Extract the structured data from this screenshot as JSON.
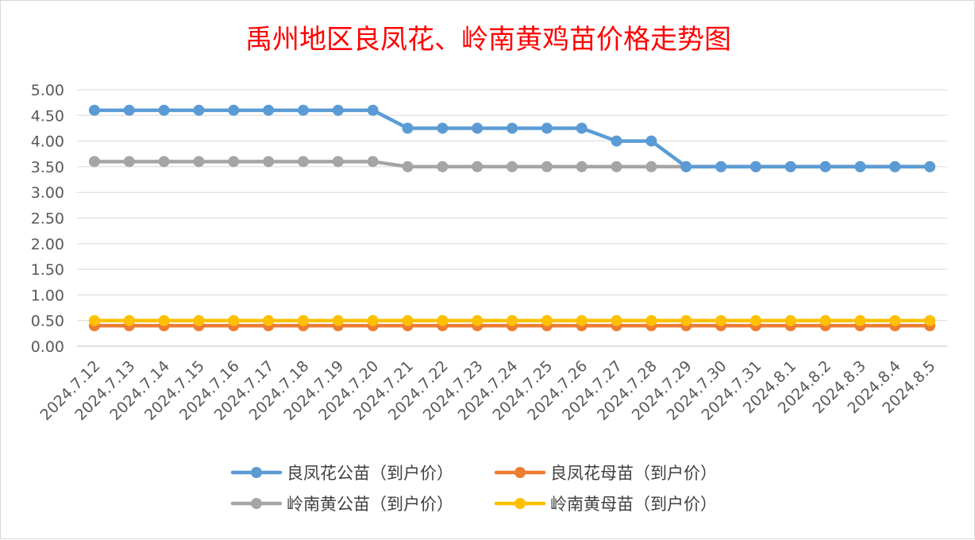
{
  "chart_data": {
    "type": "line",
    "title": "禹州地区良凤花、岭南黄鸡苗价格走势图",
    "categories": [
      "2024.7.12",
      "2024.7.13",
      "2024.7.14",
      "2024.7.15",
      "2024.7.16",
      "2024.7.17",
      "2024.7.18",
      "2024.7.19",
      "2024.7.20",
      "2024.7.21",
      "2024.7.22",
      "2024.7.23",
      "2024.7.24",
      "2024.7.25",
      "2024.7.26",
      "2024.7.27",
      "2024.7.28",
      "2024.7.29",
      "2024.7.30",
      "2024.7.31",
      "2024.8.1",
      "2024.8.2",
      "2024.8.3",
      "2024.8.4",
      "2024.8.5"
    ],
    "y_ticks": [
      "0.00",
      "0.50",
      "1.00",
      "1.50",
      "2.00",
      "2.50",
      "3.00",
      "3.50",
      "4.00",
      "4.50",
      "5.00"
    ],
    "ylim": [
      0,
      5
    ],
    "grid": true,
    "legend_position": "bottom",
    "series": [
      {
        "name": "良凤花公苗（到户价）",
        "color": "#5b9bd5",
        "values": [
          4.6,
          4.6,
          4.6,
          4.6,
          4.6,
          4.6,
          4.6,
          4.6,
          4.6,
          4.25,
          4.25,
          4.25,
          4.25,
          4.25,
          4.25,
          4.0,
          4.0,
          3.5,
          3.5,
          3.5,
          3.5,
          3.5,
          3.5,
          3.5,
          3.5
        ]
      },
      {
        "name": "良凤花母苗（到户价）",
        "color": "#ed7d31",
        "values": [
          0.4,
          0.4,
          0.4,
          0.4,
          0.4,
          0.4,
          0.4,
          0.4,
          0.4,
          0.4,
          0.4,
          0.4,
          0.4,
          0.4,
          0.4,
          0.4,
          0.4,
          0.4,
          0.4,
          0.4,
          0.4,
          0.4,
          0.4,
          0.4,
          0.4
        ]
      },
      {
        "name": "岭南黄公苗（到户价）",
        "color": "#a5a5a5",
        "values": [
          3.6,
          3.6,
          3.6,
          3.6,
          3.6,
          3.6,
          3.6,
          3.6,
          3.6,
          3.5,
          3.5,
          3.5,
          3.5,
          3.5,
          3.5,
          3.5,
          3.5,
          3.5,
          3.5,
          3.5,
          3.5,
          3.5,
          3.5,
          3.5,
          3.5
        ]
      },
      {
        "name": "岭南黄母苗（到户价）",
        "color": "#ffc000",
        "values": [
          0.5,
          0.5,
          0.5,
          0.5,
          0.5,
          0.5,
          0.5,
          0.5,
          0.5,
          0.5,
          0.5,
          0.5,
          0.5,
          0.5,
          0.5,
          0.5,
          0.5,
          0.5,
          0.5,
          0.5,
          0.5,
          0.5,
          0.5,
          0.5,
          0.5
        ]
      }
    ],
    "draw_order": [
      1,
      3,
      2,
      0
    ]
  }
}
